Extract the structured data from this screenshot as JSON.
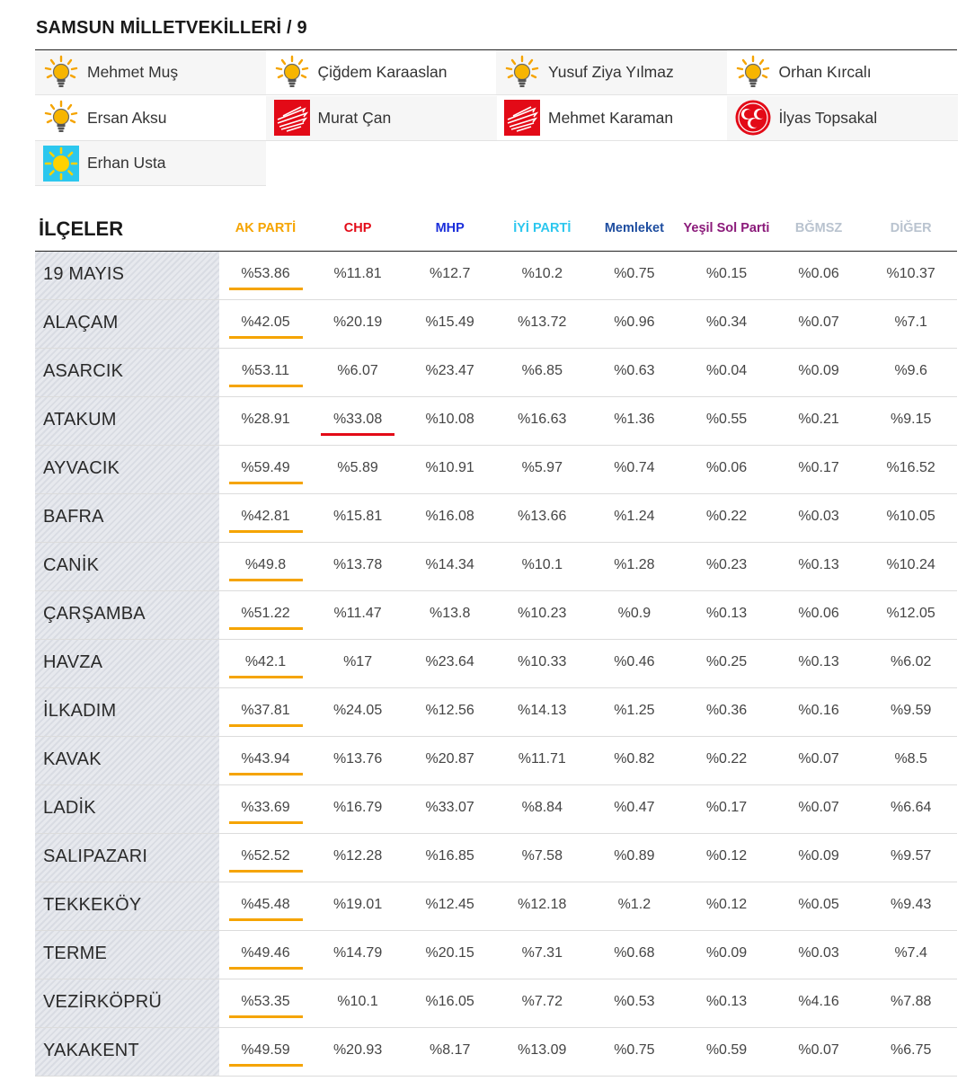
{
  "title": "SAMSUN MİLLETVEKİLLERİ / 9",
  "colors": {
    "akp": "#f5a400",
    "chp": "#e30a17",
    "mhp": "#1a2edb",
    "iyi": "#2cc7ee",
    "memleket": "#1f4ea0",
    "yesil": "#8b1a7a",
    "bagimsiz": "#b9c3cf",
    "diger": "#b9c3cf"
  },
  "mps": [
    {
      "name": "Mehmet Muş",
      "party": "akp",
      "icon": "akp-bulb-icon"
    },
    {
      "name": "Çiğdem Karaaslan",
      "party": "akp",
      "icon": "akp-bulb-icon"
    },
    {
      "name": "Yusuf Ziya Yılmaz",
      "party": "akp",
      "icon": "akp-bulb-icon"
    },
    {
      "name": "Orhan Kırcalı",
      "party": "akp",
      "icon": "akp-bulb-icon"
    },
    {
      "name": "Ersan Aksu",
      "party": "akp",
      "icon": "akp-bulb-icon"
    },
    {
      "name": "Murat Çan",
      "party": "chp",
      "icon": "chp-arrows-icon"
    },
    {
      "name": "Mehmet Karaman",
      "party": "chp",
      "icon": "chp-arrows-icon"
    },
    {
      "name": "İlyas Topsakal",
      "party": "mhp",
      "icon": "mhp-crescents-icon"
    },
    {
      "name": "Erhan Usta",
      "party": "iyi",
      "icon": "iyi-sun-icon"
    }
  ],
  "table": {
    "district_header": "İLÇELER",
    "parties": [
      {
        "key": "akp",
        "label": "AK PARTİ"
      },
      {
        "key": "chp",
        "label": "CHP"
      },
      {
        "key": "mhp",
        "label": "MHP"
      },
      {
        "key": "iyi",
        "label": "İYİ PARTİ"
      },
      {
        "key": "memleket",
        "label": "Memleket"
      },
      {
        "key": "yesil",
        "label": "Yeşil Sol Parti"
      },
      {
        "key": "bagimsiz",
        "label": "BĞMSZ"
      },
      {
        "key": "diger",
        "label": "DİĞER"
      }
    ],
    "rows": [
      {
        "district": "19 MAYIS",
        "values": [
          "%53.86",
          "%11.81",
          "%12.7",
          "%10.2",
          "%0.75",
          "%0.15",
          "%0.06",
          "%10.37"
        ],
        "winner": "akp"
      },
      {
        "district": "ALAÇAM",
        "values": [
          "%42.05",
          "%20.19",
          "%15.49",
          "%13.72",
          "%0.96",
          "%0.34",
          "%0.07",
          "%7.1"
        ],
        "winner": "akp"
      },
      {
        "district": "ASARCIK",
        "values": [
          "%53.11",
          "%6.07",
          "%23.47",
          "%6.85",
          "%0.63",
          "%0.04",
          "%0.09",
          "%9.6"
        ],
        "winner": "akp"
      },
      {
        "district": "ATAKUM",
        "values": [
          "%28.91",
          "%33.08",
          "%10.08",
          "%16.63",
          "%1.36",
          "%0.55",
          "%0.21",
          "%9.15"
        ],
        "winner": "chp"
      },
      {
        "district": "AYVACIK",
        "values": [
          "%59.49",
          "%5.89",
          "%10.91",
          "%5.97",
          "%0.74",
          "%0.06",
          "%0.17",
          "%16.52"
        ],
        "winner": "akp"
      },
      {
        "district": "BAFRA",
        "values": [
          "%42.81",
          "%15.81",
          "%16.08",
          "%13.66",
          "%1.24",
          "%0.22",
          "%0.03",
          "%10.05"
        ],
        "winner": "akp"
      },
      {
        "district": "CANİK",
        "values": [
          "%49.8",
          "%13.78",
          "%14.34",
          "%10.1",
          "%1.28",
          "%0.23",
          "%0.13",
          "%10.24"
        ],
        "winner": "akp"
      },
      {
        "district": "ÇARŞAMBA",
        "values": [
          "%51.22",
          "%11.47",
          "%13.8",
          "%10.23",
          "%0.9",
          "%0.13",
          "%0.06",
          "%12.05"
        ],
        "winner": "akp"
      },
      {
        "district": "HAVZA",
        "values": [
          "%42.1",
          "%17",
          "%23.64",
          "%10.33",
          "%0.46",
          "%0.25",
          "%0.13",
          "%6.02"
        ],
        "winner": "akp"
      },
      {
        "district": "İLKADIM",
        "values": [
          "%37.81",
          "%24.05",
          "%12.56",
          "%14.13",
          "%1.25",
          "%0.36",
          "%0.16",
          "%9.59"
        ],
        "winner": "akp"
      },
      {
        "district": "KAVAK",
        "values": [
          "%43.94",
          "%13.76",
          "%20.87",
          "%11.71",
          "%0.82",
          "%0.22",
          "%0.07",
          "%8.5"
        ],
        "winner": "akp"
      },
      {
        "district": "LADİK",
        "values": [
          "%33.69",
          "%16.79",
          "%33.07",
          "%8.84",
          "%0.47",
          "%0.17",
          "%0.07",
          "%6.64"
        ],
        "winner": "akp"
      },
      {
        "district": "SALIPAZARI",
        "values": [
          "%52.52",
          "%12.28",
          "%16.85",
          "%7.58",
          "%0.89",
          "%0.12",
          "%0.09",
          "%9.57"
        ],
        "winner": "akp"
      },
      {
        "district": "TEKKEKÖY",
        "values": [
          "%45.48",
          "%19.01",
          "%12.45",
          "%12.18",
          "%1.2",
          "%0.12",
          "%0.05",
          "%9.43"
        ],
        "winner": "akp"
      },
      {
        "district": "TERME",
        "values": [
          "%49.46",
          "%14.79",
          "%20.15",
          "%7.31",
          "%0.68",
          "%0.09",
          "%0.03",
          "%7.4"
        ],
        "winner": "akp"
      },
      {
        "district": "VEZİRKÖPRÜ",
        "values": [
          "%53.35",
          "%10.1",
          "%16.05",
          "%7.72",
          "%0.53",
          "%0.13",
          "%4.16",
          "%7.88"
        ],
        "winner": "akp"
      },
      {
        "district": "YAKAKENT",
        "values": [
          "%49.59",
          "%20.93",
          "%8.17",
          "%13.09",
          "%0.75",
          "%0.59",
          "%0.07",
          "%6.75"
        ],
        "winner": "akp"
      }
    ]
  }
}
